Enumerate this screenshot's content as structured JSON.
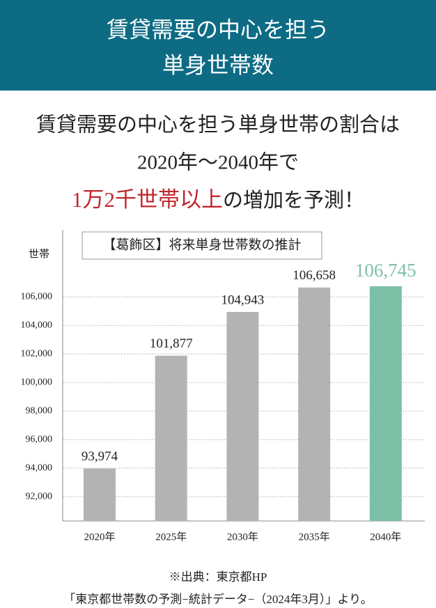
{
  "header": {
    "title_lines": [
      "賃貸需要の中心を担う",
      "単身世帯数"
    ]
  },
  "headline": {
    "line1": "賃貸需要の中心を担う単身世帯の割合は",
    "line2": "2020年〜2040年で",
    "line3_highlight": "1万2千世帯以上",
    "line3_rest": "の増加を予測！"
  },
  "chart_data": {
    "type": "bar",
    "title": "【葛飾区】将来単身世帯数の推計",
    "y_label": "世帯",
    "categories": [
      "2020年",
      "2025年",
      "2030年",
      "2035年",
      "2040年"
    ],
    "values": [
      93974,
      101877,
      104943,
      106658,
      106745
    ],
    "value_labels": [
      "93,974",
      "101,877",
      "104,943",
      "106,658",
      "106,745"
    ],
    "colors": [
      "#b3b3b3",
      "#b3b3b3",
      "#b3b3b3",
      "#b3b3b3",
      "#7dbfa7"
    ],
    "ylim": [
      90300,
      110700
    ],
    "yticks": [
      {
        "value": 92000,
        "label": "92,000"
      },
      {
        "value": 94000,
        "label": "94,000"
      },
      {
        "value": 96000,
        "label": "96,000"
      },
      {
        "value": 98000,
        "label": "98,000"
      },
      {
        "value": 100000,
        "label": "100,000"
      },
      {
        "value": 102000,
        "label": "102,000"
      },
      {
        "value": 104000,
        "label": "104,000"
      },
      {
        "value": 106000,
        "label": "106,000"
      }
    ],
    "grid": true
  },
  "source": {
    "lines": [
      "※出典：東京都HP",
      "「東京都世帯数の予測−統計データ−（2024年3月）」より。"
    ]
  }
}
